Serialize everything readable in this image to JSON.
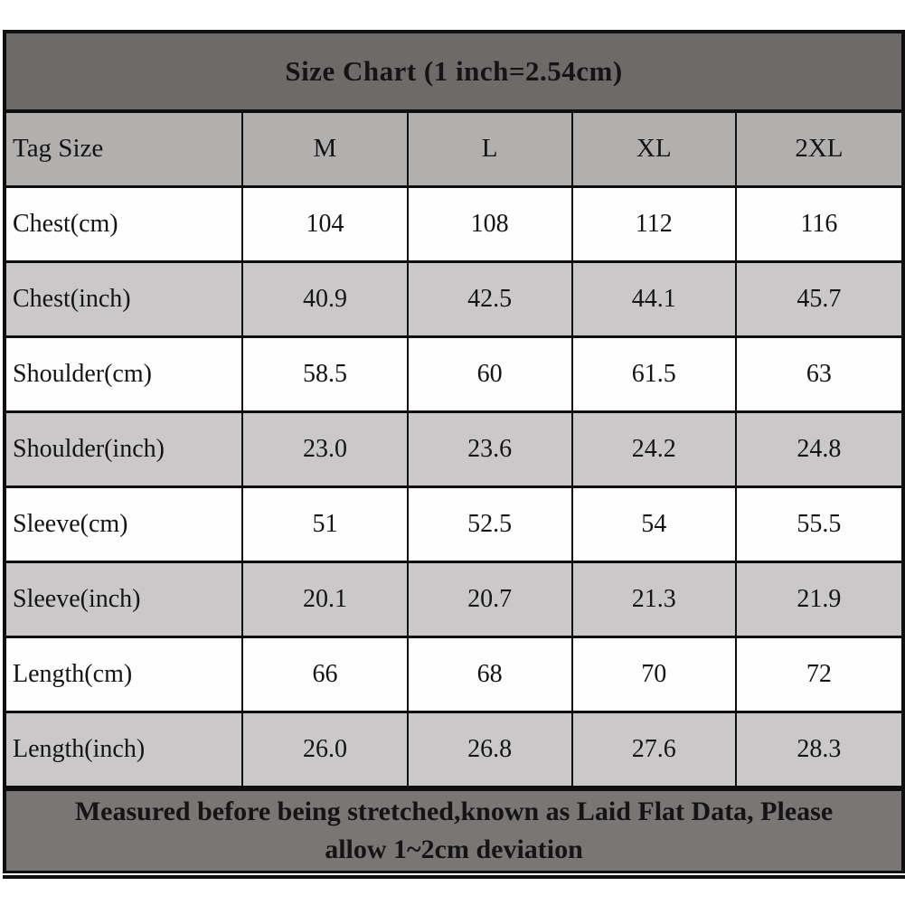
{
  "chart_data": {
    "type": "table",
    "title": "Size Chart (1 inch=2.54cm)",
    "columns": [
      "Tag Size",
      "M",
      "L",
      "XL",
      "2XL"
    ],
    "rows": [
      {
        "label": "Chest(cm)",
        "values": [
          "104",
          "108",
          "112",
          "116"
        ]
      },
      {
        "label": "Chest(inch)",
        "values": [
          "40.9",
          "42.5",
          "44.1",
          "45.7"
        ]
      },
      {
        "label": "Shoulder(cm)",
        "values": [
          "58.5",
          "60",
          "61.5",
          "63"
        ]
      },
      {
        "label": "Shoulder(inch)",
        "values": [
          "23.0",
          "23.6",
          "24.2",
          "24.8"
        ]
      },
      {
        "label": "Sleeve(cm)",
        "values": [
          "51",
          "52.5",
          "54",
          "55.5"
        ]
      },
      {
        "label": "Sleeve(inch)",
        "values": [
          "20.1",
          "20.7",
          "21.3",
          "21.9"
        ]
      },
      {
        "label": "Length(cm)",
        "values": [
          "66",
          "68",
          "70",
          "72"
        ]
      },
      {
        "label": "Length(inch)",
        "values": [
          "26.0",
          "26.8",
          "27.6",
          "28.3"
        ]
      }
    ],
    "footnote_lines": [
      "Measured before being stretched,known as Laid Flat Data, Please",
      "allow 1~2cm deviation"
    ],
    "layout_hints": {
      "row_striping": "cm rows white, inch rows gray",
      "legend_position": "none",
      "grid": "on"
    },
    "colors": {
      "title_band": "#6e6a6a",
      "footer_band": "#7a7676",
      "header_row": "#b2afaf",
      "alt_row": "#cac8c8",
      "plain_row": "#fefefe",
      "border": "#0f0f0f",
      "text": "#141414"
    }
  }
}
